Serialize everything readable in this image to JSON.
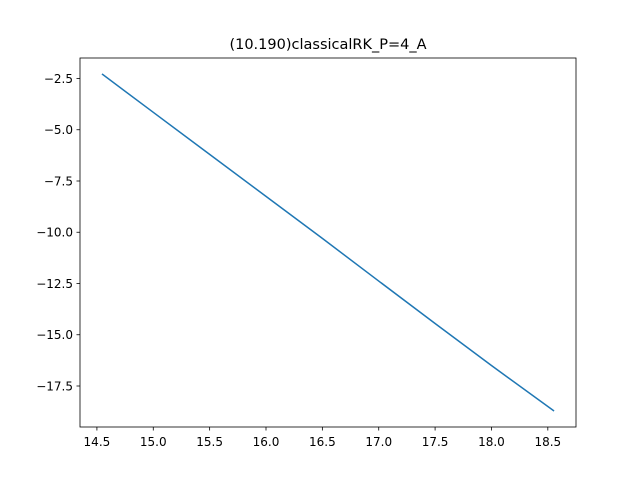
{
  "chart_data": {
    "type": "line",
    "title": "(10.190)classicalRK_P=4_A",
    "xlabel": "",
    "ylabel": "",
    "xlim": [
      14.35,
      18.75
    ],
    "ylim": [
      -19.5,
      -1.5
    ],
    "x_ticks": [
      {
        "value": 14.5,
        "label": "14.5"
      },
      {
        "value": 15.0,
        "label": "15.0"
      },
      {
        "value": 15.5,
        "label": "15.5"
      },
      {
        "value": 16.0,
        "label": "16.0"
      },
      {
        "value": 16.5,
        "label": "16.5"
      },
      {
        "value": 17.0,
        "label": "17.0"
      },
      {
        "value": 17.5,
        "label": "17.5"
      },
      {
        "value": 18.0,
        "label": "18.0"
      },
      {
        "value": 18.5,
        "label": "18.5"
      }
    ],
    "y_ticks": [
      {
        "value": -2.5,
        "label": "−2.5"
      },
      {
        "value": -5.0,
        "label": "−5.0"
      },
      {
        "value": -7.5,
        "label": "−7.5"
      },
      {
        "value": -10.0,
        "label": "−10.0"
      },
      {
        "value": -12.5,
        "label": "−12.5"
      },
      {
        "value": -15.0,
        "label": "−15.0"
      },
      {
        "value": -17.5,
        "label": "−17.5"
      }
    ],
    "grid": false,
    "series": [
      {
        "color": "#1f77b4",
        "x": [
          14.55,
          15.0,
          15.5,
          16.0,
          16.5,
          17.0,
          17.5,
          18.0,
          18.55
        ],
        "y": [
          -2.3,
          -4.15,
          -6.2,
          -8.25,
          -10.3,
          -12.38,
          -14.45,
          -16.5,
          -18.7
        ]
      }
    ]
  }
}
